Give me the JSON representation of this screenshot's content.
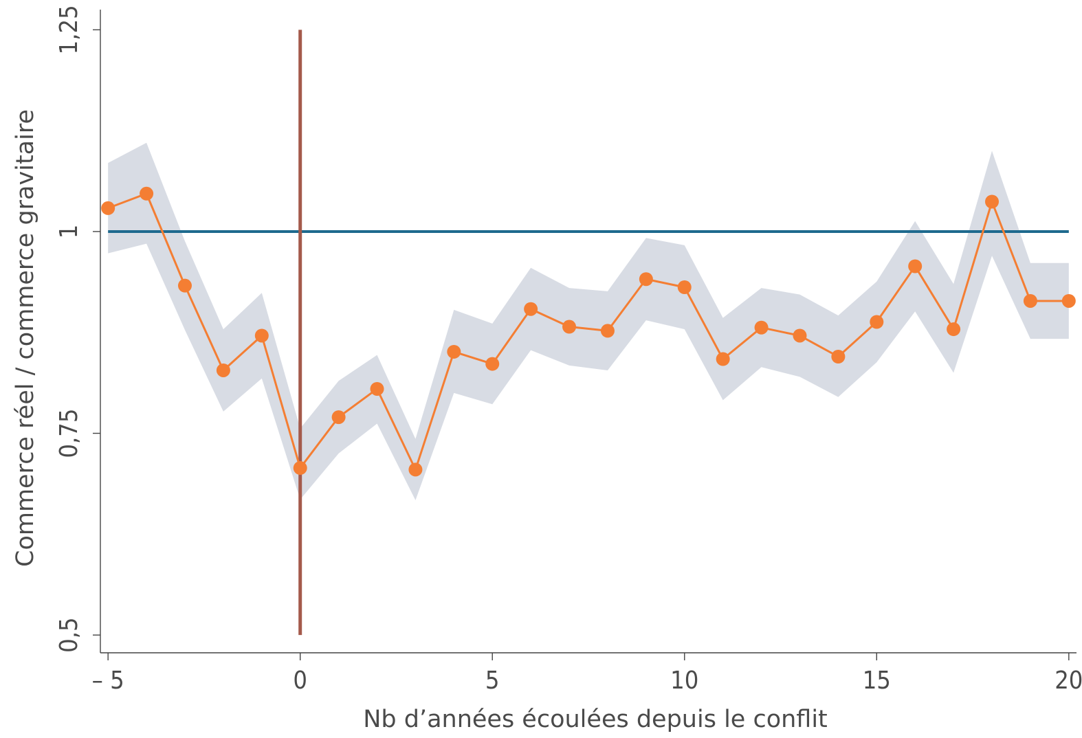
{
  "chart_data": {
    "type": "line",
    "title": "",
    "xlabel": "Nb d’années écoulées depuis le conflit",
    "ylabel": "Commerce réel / commerce gravitaire",
    "xlim": [
      -5.2,
      20.2
    ],
    "ylim": [
      0.478,
      1.275
    ],
    "x_ticks": [
      -5,
      0,
      5,
      10,
      15,
      20
    ],
    "x_tick_labels": [
      "– 5",
      "0",
      "5",
      "10",
      "15",
      "20"
    ],
    "y_ticks": [
      0.5,
      0.75,
      1,
      1.25
    ],
    "y_tick_labels": [
      "0,5",
      "0,75",
      "1",
      "1,25"
    ],
    "grid": false,
    "legend": "none",
    "x": [
      -5,
      -4,
      -3,
      -2,
      -1,
      0,
      1,
      2,
      3,
      4,
      5,
      6,
      7,
      8,
      9,
      10,
      11,
      12,
      13,
      14,
      15,
      16,
      17,
      18,
      19,
      20
    ],
    "series": [
      {
        "values": [
          1.029,
          1.047,
          0.933,
          0.828,
          0.871,
          0.707,
          0.77,
          0.805,
          0.705,
          0.851,
          0.836,
          0.904,
          0.882,
          0.877,
          0.941,
          0.931,
          0.842,
          0.881,
          0.871,
          0.845,
          0.888,
          0.957,
          0.879,
          1.037,
          0.914,
          0.914
        ],
        "lower": [
          0.973,
          0.985,
          0.878,
          0.777,
          0.818,
          0.668,
          0.725,
          0.762,
          0.667,
          0.8,
          0.786,
          0.853,
          0.834,
          0.828,
          0.89,
          0.879,
          0.791,
          0.832,
          0.82,
          0.795,
          0.838,
          0.901,
          0.825,
          0.97,
          0.867,
          0.867
        ],
        "upper": [
          1.085,
          1.11,
          0.988,
          0.879,
          0.924,
          0.756,
          0.815,
          0.847,
          0.743,
          0.903,
          0.886,
          0.955,
          0.93,
          0.926,
          0.992,
          0.983,
          0.893,
          0.93,
          0.922,
          0.896,
          0.938,
          1.013,
          0.935,
          1.1,
          0.961,
          0.961
        ]
      }
    ],
    "reference_lines": [
      {
        "orientation": "horizontal",
        "value": 1
      },
      {
        "orientation": "vertical",
        "value": 0,
        "y_range": [
          0.5,
          1.25
        ]
      }
    ],
    "colors": {
      "line": "#f47e33",
      "marker": "#f47e33",
      "band": "#d8dce4",
      "hline": "#1e6a8e",
      "vline": "#a45a4b",
      "axis": "#444444",
      "text": "#4a4a4a"
    }
  }
}
